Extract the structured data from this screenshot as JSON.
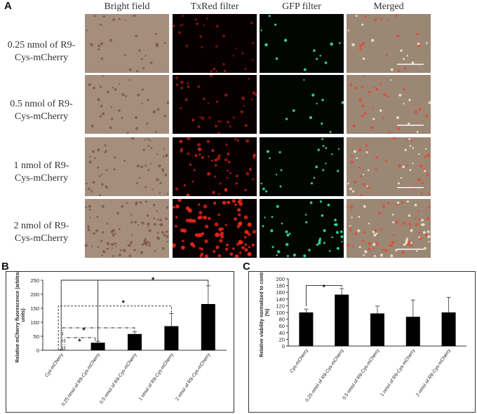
{
  "panels": {
    "a_letter": "A",
    "b_letter": "B",
    "c_letter": "C"
  },
  "microscopy": {
    "columns": [
      "Bright field",
      "TxRed filter",
      "GFP filter",
      "Merged"
    ],
    "rows": [
      {
        "line1": "0.25 nmol of R9-",
        "line2": "Cys-mCherry",
        "red_density": 0.25
      },
      {
        "line1": "0.5 nmol of R9-",
        "line2": "Cys-mCherry",
        "red_density": 0.5
      },
      {
        "line1": "1 nmol of R9-",
        "line2": "Cys-mCherry",
        "red_density": 1
      },
      {
        "line1": "2 nmol of R9-",
        "line2": "Cys-mCherry",
        "red_density": 2
      }
    ],
    "colors": {
      "bright_field": "#a58e7c",
      "txred_bg": "#080000",
      "txred_cell": "#ff2a1a",
      "gfp_bg": "#020602",
      "gfp_cell": "#35f0a0",
      "merged_bg": "#9c8674",
      "scale_bar": "#ffffff"
    }
  },
  "chart_data": [
    {
      "type": "bar",
      "panel": "B",
      "title": "",
      "xlabel": "",
      "ylabel": "Relative mCherry fluorescence (arbitrary units)",
      "ylim": [
        0,
        250
      ],
      "yticks": [
        "0",
        "50",
        "100",
        "150",
        "200",
        "250"
      ],
      "categories": [
        "Cys-mCherry",
        "0.25 nmol of R9-Cys-mCherry",
        "0.5 nmol of R9-Cys-mCherry",
        "1 nmol of R9-Cys-mCherry",
        "2 nmol of R9-Cys-mCherry"
      ],
      "values": [
        1,
        27,
        58,
        86,
        165
      ],
      "errors": [
        1,
        5,
        8,
        45,
        65
      ],
      "bar_color": "#000000",
      "grid": false,
      "significance_marks": [
        "*",
        "*",
        "*",
        "*"
      ]
    },
    {
      "type": "bar",
      "panel": "C",
      "title": "",
      "xlabel": "",
      "ylabel": "Relative viability normalized to control (%)",
      "ylim": [
        0,
        200
      ],
      "yticks": [
        "0",
        "20",
        "40",
        "60",
        "80",
        "100",
        "120",
        "140",
        "160",
        "180",
        "200"
      ],
      "categories": [
        "Cys-mCherry",
        "0.25 nmol of R9-Cys-mCherry",
        "0.5 nmol of R9-Cys-mCherry",
        "1 nmol of R9-Cys-mCherry",
        "2 nmol of R9-Cys-mCherry"
      ],
      "values": [
        100,
        153,
        97,
        87,
        100
      ],
      "errors": [
        10,
        18,
        22,
        50,
        45
      ],
      "bar_color": "#000000",
      "grid": false,
      "significance_marks": [
        "*"
      ]
    }
  ]
}
